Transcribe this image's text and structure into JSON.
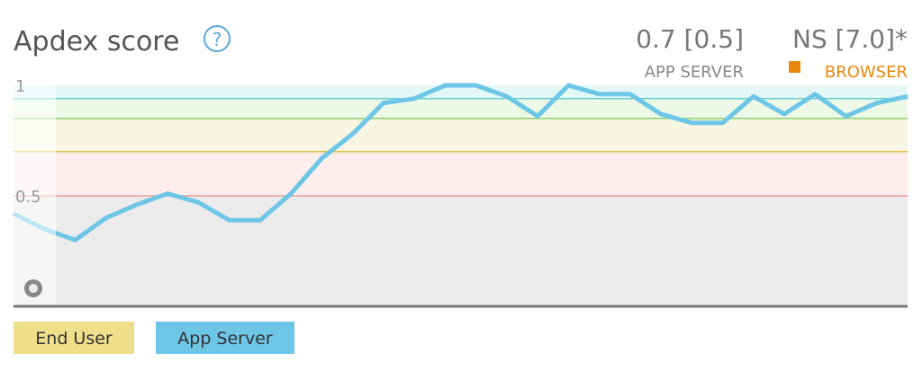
{
  "chart_data": {
    "type": "line",
    "title": "Apdex score",
    "summary": [
      {
        "value": "0.7 [0.5]",
        "label": "APP SERVER"
      },
      {
        "value": "NS [7.0]*",
        "label": "BROWSER",
        "color": "#e8890c"
      }
    ],
    "ylim": [
      0,
      1
    ],
    "yticks": [
      1,
      0.5
    ],
    "grid": false,
    "thresholds": [
      {
        "from": 0,
        "to": 0.5,
        "fill": "#ebebeb",
        "color": "#e8a09a"
      },
      {
        "from": 0.5,
        "to": 0.7,
        "fill": "#fdeeed",
        "color": "#e0c040"
      },
      {
        "from": 0.7,
        "to": 0.85,
        "fill": "#f8f5e2",
        "color": "#8ad070"
      },
      {
        "from": 0.85,
        "to": 0.94,
        "fill": "#eef8e6",
        "color": "#60d0d0"
      },
      {
        "from": 0.94,
        "to": 1,
        "fill": "#e3f7f7"
      }
    ],
    "series": [
      {
        "name": "App Server",
        "color": "#6ec6e6",
        "values": [
          0.42,
          0.35,
          0.3,
          0.4,
          0.46,
          0.51,
          0.47,
          0.39,
          0.39,
          0.51,
          0.67,
          0.78,
          0.92,
          0.94,
          1.0,
          1.0,
          0.95,
          0.86,
          1.0,
          0.96,
          0.96,
          0.87,
          0.83,
          0.83,
          0.95,
          0.87,
          0.96,
          0.86,
          0.92,
          0.95
        ]
      }
    ],
    "toggles": [
      {
        "name": "End User",
        "color": "#f0df8a"
      }
    ]
  }
}
